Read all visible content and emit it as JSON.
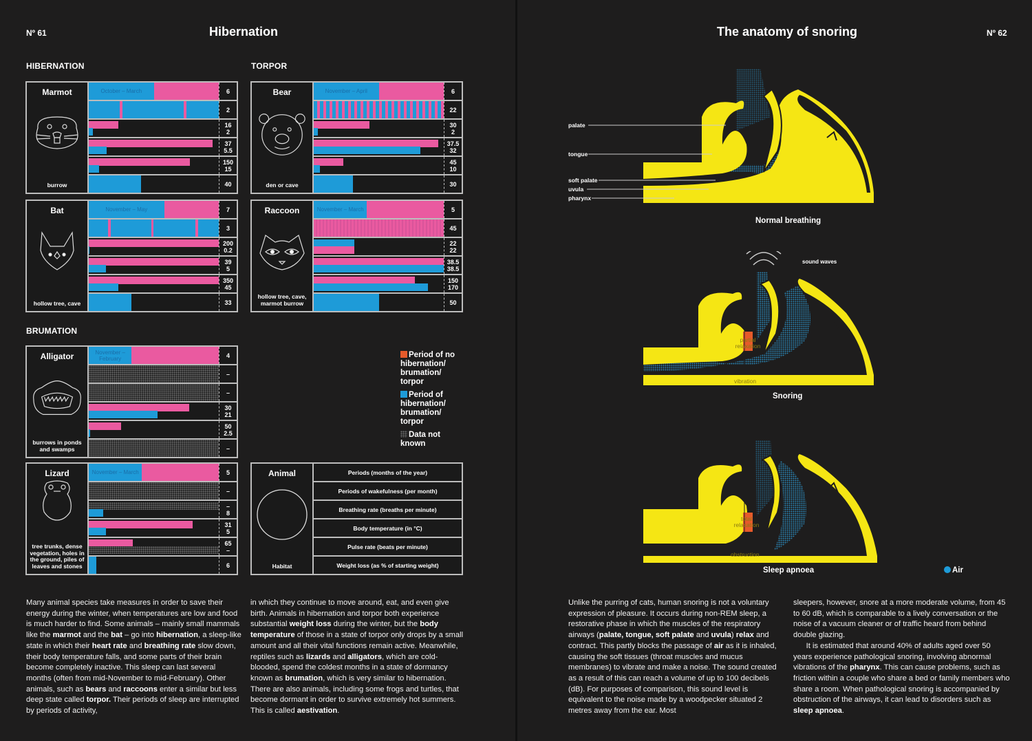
{
  "left_page": {
    "page_number": "Nº 61",
    "title": "Hibernation",
    "sections": {
      "hibernation": "HIBERNATION",
      "torpor": "TORPOR",
      "brumation": "BRUMATION"
    },
    "animals": [
      {
        "name": "Marmot",
        "habitat": "burrow",
        "period": "October – March",
        "icon": "marmot-icon",
        "values": {
          "periods_months": "6",
          "wakefulness": "2",
          "breathing": [
            "16",
            "2"
          ],
          "temperature": [
            "37",
            "5.5"
          ],
          "pulse": [
            "150",
            "15"
          ],
          "weight_loss": "40"
        }
      },
      {
        "name": "Bat",
        "habitat": "hollow tree, cave",
        "period": "November – May",
        "icon": "bat-icon",
        "values": {
          "periods_months": "7",
          "wakefulness": "3",
          "breathing": [
            "200",
            "0.2"
          ],
          "temperature": [
            "39",
            "5"
          ],
          "pulse": [
            "350",
            "45"
          ],
          "weight_loss": "33"
        }
      },
      {
        "name": "Bear",
        "habitat": "den or cave",
        "period": "November – April",
        "icon": "bear-icon",
        "values": {
          "periods_months": "6",
          "wakefulness": "22",
          "breathing": [
            "30",
            "2"
          ],
          "temperature": [
            "37.5",
            "32"
          ],
          "pulse": [
            "45",
            "10"
          ],
          "weight_loss": "30"
        }
      },
      {
        "name": "Raccoon",
        "habitat": "hollow tree, cave, marmot burrow",
        "period": "November – March",
        "icon": "raccoon-icon",
        "values": {
          "periods_months": "5",
          "wakefulness": "45",
          "breathing": [
            "22",
            "22"
          ],
          "temperature": [
            "38.5",
            "38.5"
          ],
          "pulse": [
            "150",
            "170"
          ],
          "weight_loss": "50"
        }
      },
      {
        "name": "Alligator",
        "habitat": "burrows in ponds and swamps",
        "period": "November – February",
        "icon": "alligator-icon",
        "values": {
          "periods_months": "4",
          "wakefulness": "–",
          "breathing": [
            "–"
          ],
          "temperature": [
            "30",
            "21"
          ],
          "pulse": [
            "50",
            "2.5"
          ],
          "weight_loss": "–"
        }
      },
      {
        "name": "Lizard",
        "habitat": "tree trunks, dense vegetation, holes in the ground, piles of leaves and stones",
        "period": "November – March",
        "icon": "lizard-icon",
        "values": {
          "periods_months": "5",
          "wakefulness": "–",
          "breathing": [
            "–",
            "8"
          ],
          "temperature": [
            "31",
            "5"
          ],
          "pulse": [
            "65",
            "–"
          ],
          "weight_loss": "6"
        }
      }
    ],
    "legend": {
      "no_period": "Period of no hibernation/ brumation/ torpor",
      "period": "Period of hibernation/ brumation/ torpor",
      "unknown": "Data not known",
      "colors": {
        "no_period": "#e65a2a",
        "period": "#1e9bd8",
        "pink_bar": "#ea5aa0"
      }
    },
    "key": {
      "animal": "Animal",
      "habitat": "Habitat",
      "rows": [
        "Periods (months of the year)",
        "Periods of wakefulness (per month)",
        "Breathing rate (breaths per minute)",
        "Body temperature (in °C)",
        "Pulse rate (beats per minute)",
        "Weight loss (as % of starting weight)"
      ]
    },
    "body_col1": "Many animal species take measures in order to save their energy during the winter, when temperatures are low and food is much harder to find. Some animals – mainly small mammals like the <b>marmot</b> and the <b>bat</b> – go into <b>hibernation</b>, a sleep-like state in which their <b>heart rate</b> and <b>breathing rate</b> slow down, their body temperature falls, and some parts of their brain become completely inactive. This sleep can last several months (often from mid-November to mid-February). Other animals, such as <b>bears</b> and <b>raccoons</b> enter a similar but less deep state called <b>torpor.</b> Their periods of sleep are interrupted by periods of activity,",
    "body_col2": "in which they continue to move around, eat, and even give birth. Animals in hibernation and torpor both experience substantial <b>weight loss</b> during the winter, but the <b>body temperature</b> of those in a state of torpor only drops by a small amount and all their vital functions remain active. Meanwhile, reptiles such as <b>lizards</b> and <b>alligators</b>, which are cold-blooded, spend the coldest months in a state of dormancy known as <b>brumation</b>, which is very similar to hibernation. There are also animals, including some frogs and turtles, that become dormant in order to survive extremely hot summers. This is called <b>aestivation</b>."
  },
  "right_page": {
    "page_number": "Nº 62",
    "title": "The anatomy of snoring",
    "labels": {
      "palate": "palate",
      "tongue": "tongue",
      "soft_palate": "soft palate",
      "uvula": "uvula",
      "pharynx": "pharynx",
      "sound_waves": "sound waves",
      "partial_relaxation": "partial relaxation",
      "vibration": "vibration",
      "total_relaxation": "total relaxation",
      "obstruction": "obstruction"
    },
    "captions": {
      "normal": "Normal breathing",
      "snoring": "Snoring",
      "apnoea": "Sleep apnoea"
    },
    "air_legend": "Air",
    "colors": {
      "face": "#f5e614",
      "air": "#1e9bd8",
      "relaxation": "#e65a2a"
    },
    "body_col1": "Unlike the purring of cats, human snoring is not a voluntary expression of pleasure. It occurs during non-REM sleep, a restorative phase in which the muscles of the respiratory airways (<b>palate, tongue, soft palate</b> and <b>uvula</b>) <b>relax</b> and contract. This partly blocks the passage of <b>air</b> as it is inhaled, causing the soft tissues (throat muscles and mucus membranes) to vibrate and make a noise. The sound created as a result of this can reach a volume of up to 100 decibels (dB). For purposes of comparison, this sound level is equivalent to the noise made by a woodpecker situated 2 metres away from the ear. Most",
    "body_col2": "sleepers, however, snore at a more moderate volume, from 45 to 60 dB, which is comparable to a lively conversation or the noise of a vacuum cleaner or of traffic heard from behind double glazing.<br>&nbsp;&nbsp;&nbsp;&nbsp;&nbsp;&nbsp;It is estimated that around 40% of adults aged over 50 years experience pathological snoring, involving abnormal vibrations of the <b>pharynx</b>. This can cause problems, such as friction within a couple who share a bed or family members who share a room. When pathological snoring is accompanied by obstruction of the airways, it can lead to disorders such as <b>sleep apnoea</b>."
  }
}
